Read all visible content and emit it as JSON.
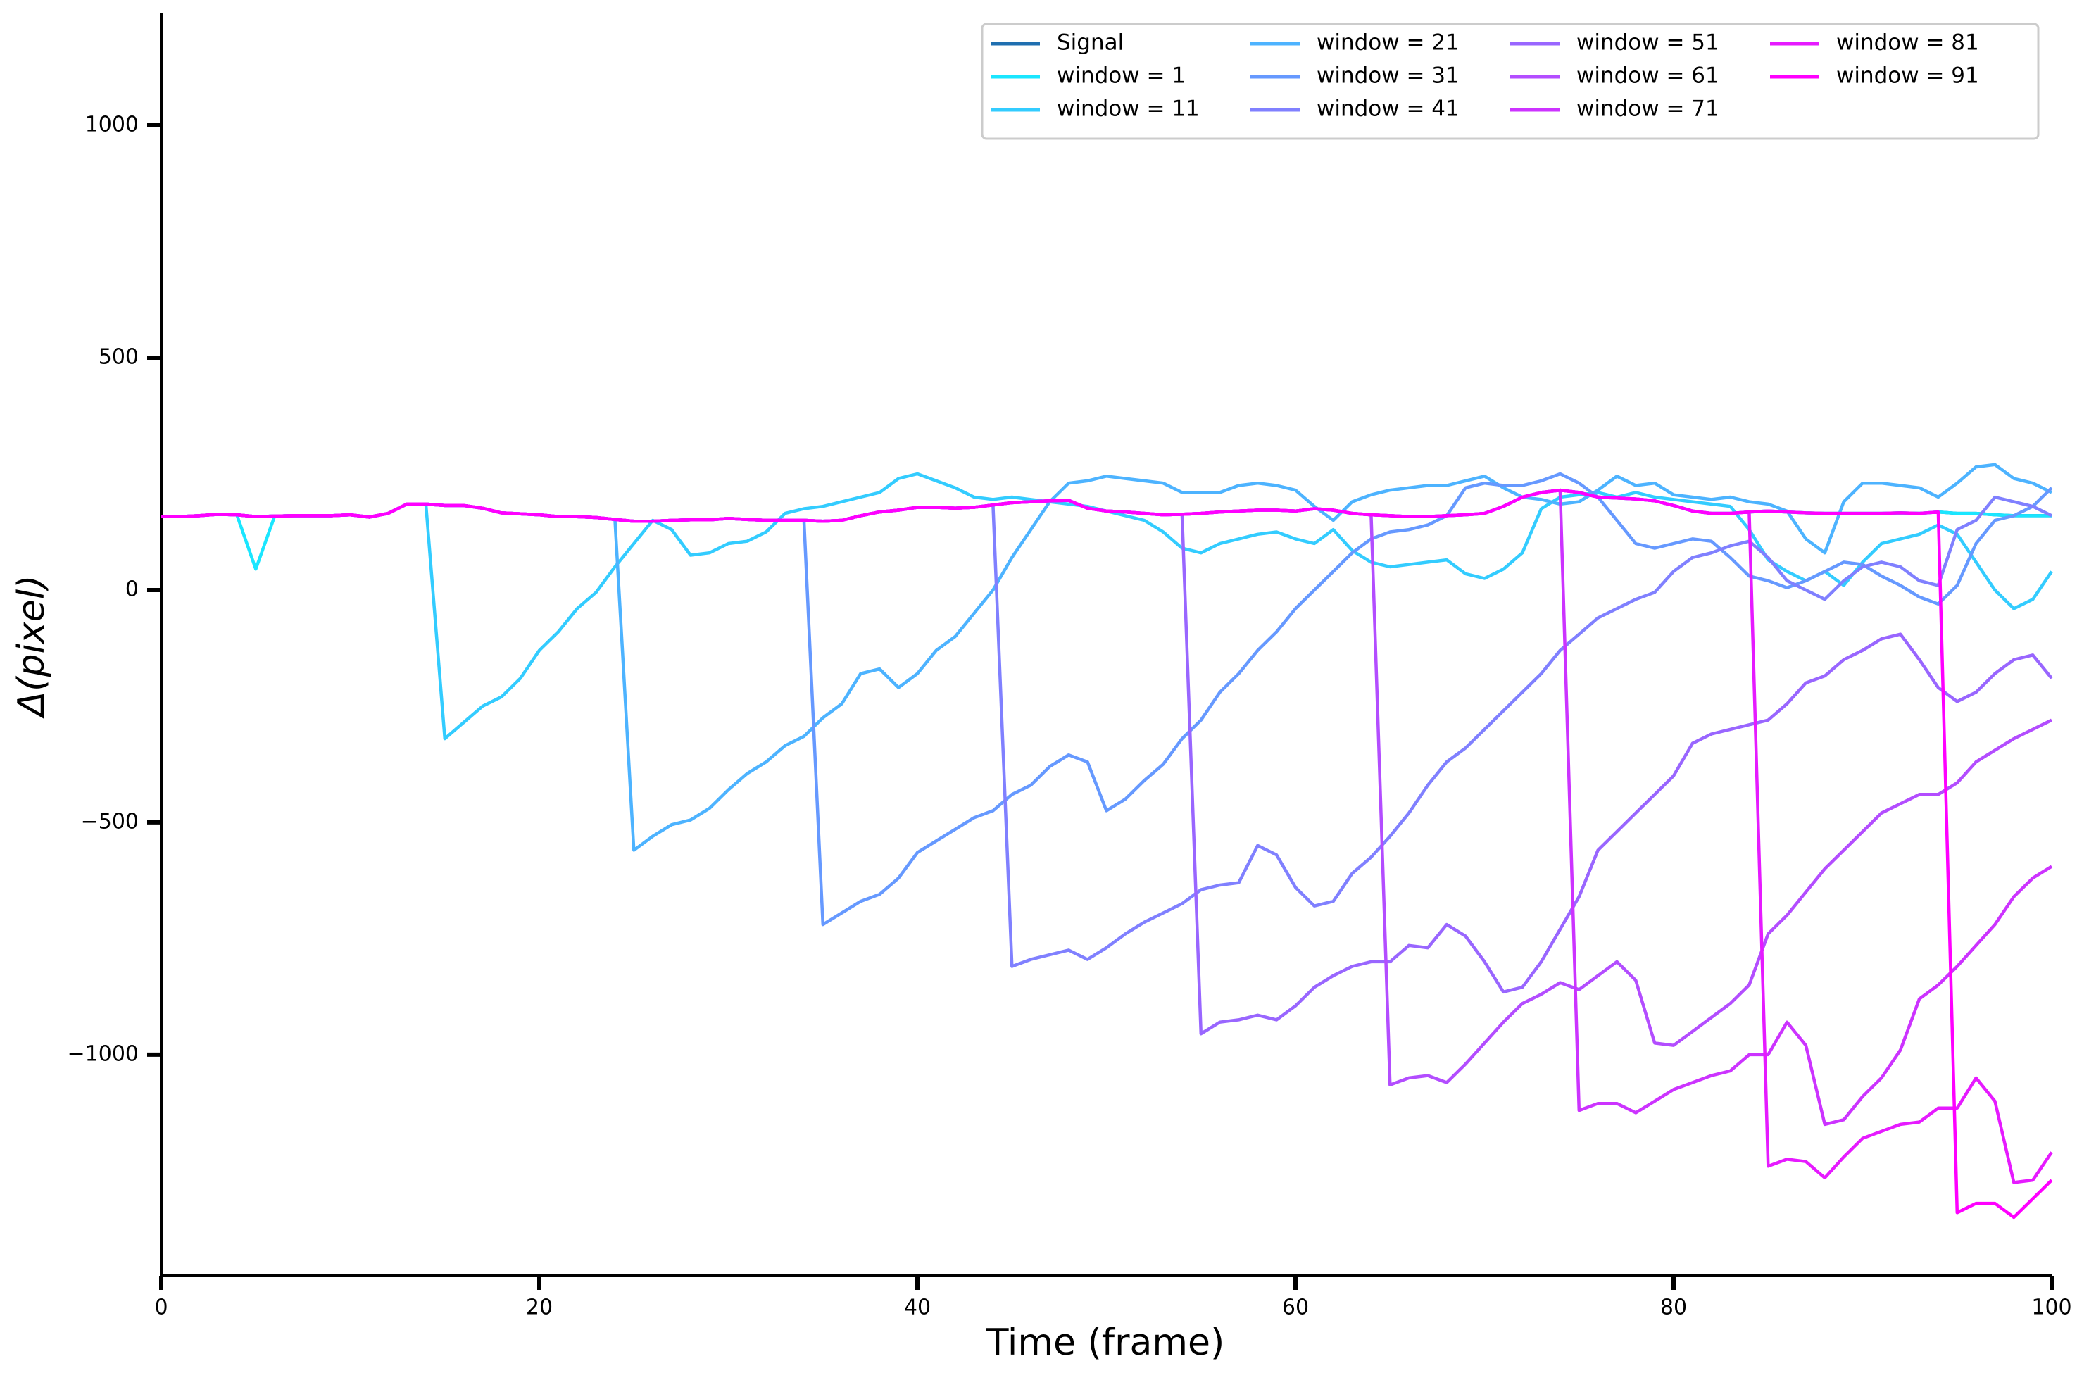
{
  "chart_data": {
    "type": "line",
    "xlabel": "Time (frame)",
    "ylabel": "Δ(pixel)",
    "xlim": [
      0,
      100
    ],
    "ylim": [
      -1476,
      1241
    ],
    "xticks": [
      0,
      20,
      40,
      60,
      80,
      100
    ],
    "yticks": [
      {
        "value": -1000,
        "label": "−1000"
      },
      {
        "value": -500,
        "label": "−500"
      },
      0,
      500,
      1000
    ],
    "legend": "upper right",
    "x": [
      0,
      1,
      2,
      3,
      4,
      5,
      6,
      7,
      8,
      9,
      10,
      11,
      12,
      13,
      14,
      15,
      16,
      17,
      18,
      19,
      20,
      21,
      22,
      23,
      24,
      25,
      26,
      27,
      28,
      29,
      30,
      31,
      32,
      33,
      34,
      35,
      36,
      37,
      38,
      39,
      40,
      41,
      42,
      43,
      44,
      45,
      46,
      47,
      48,
      49,
      50,
      51,
      52,
      53,
      54,
      55,
      56,
      57,
      58,
      59,
      60,
      61,
      62,
      63,
      64,
      65,
      66,
      67,
      68,
      69,
      70,
      71,
      72,
      73,
      74,
      75,
      76,
      77,
      78,
      79,
      80,
      81,
      82,
      83,
      84,
      85,
      86,
      87,
      88,
      89,
      90,
      91,
      92,
      93,
      94,
      95,
      96,
      97,
      98,
      99,
      100
    ],
    "series": [
      {
        "name": "Signal",
        "color": "#1f6fb0",
        "values": [
          158,
          158,
          160,
          163,
          162,
          158,
          159,
          160,
          160,
          160,
          162,
          157,
          165,
          185,
          185,
          182,
          182,
          176,
          166,
          164,
          162,
          158,
          158,
          156,
          152,
          148,
          148,
          150,
          151,
          151,
          154,
          152,
          150,
          150,
          150,
          148,
          150,
          160,
          168,
          172,
          178,
          178,
          176,
          178,
          183,
          188,
          190,
          192,
          193,
          176,
          170,
          168,
          165,
          162,
          163,
          165,
          168,
          170,
          172,
          172,
          170,
          175,
          172,
          165,
          162,
          160,
          158,
          158,
          160,
          162,
          165,
          180,
          200,
          210,
          215,
          210,
          200,
          198,
          196,
          192,
          182,
          170,
          165,
          165,
          168,
          170,
          168,
          166,
          165,
          165,
          165,
          165,
          166,
          165,
          168,
          165,
          165,
          162,
          160,
          160,
          160
        ]
      },
      {
        "name": "window = 1",
        "color": "#1ae6ff",
        "values": [
          158,
          158,
          160,
          163,
          162,
          45,
          159,
          160,
          160,
          160,
          162,
          157,
          165,
          185,
          185,
          182,
          182,
          176,
          166,
          164,
          162,
          158,
          158,
          156,
          152,
          148,
          148,
          150,
          151,
          151,
          154,
          152,
          150,
          150,
          150,
          148,
          150,
          160,
          168,
          172,
          178,
          178,
          176,
          178,
          183,
          188,
          190,
          192,
          193,
          176,
          170,
          168,
          165,
          162,
          163,
          165,
          168,
          170,
          172,
          172,
          170,
          175,
          172,
          165,
          162,
          160,
          158,
          158,
          160,
          162,
          165,
          180,
          200,
          210,
          215,
          210,
          200,
          198,
          196,
          192,
          182,
          170,
          165,
          165,
          168,
          170,
          168,
          166,
          165,
          165,
          165,
          165,
          166,
          165,
          168,
          165,
          165,
          162,
          160,
          160,
          160
        ]
      },
      {
        "name": "window = 11",
        "color": "#33ccff",
        "values": [
          158,
          158,
          160,
          163,
          162,
          158,
          159,
          160,
          160,
          160,
          162,
          157,
          165,
          185,
          185,
          -320,
          -285,
          -250,
          -230,
          -190,
          -130,
          -90,
          -40,
          -5,
          50,
          100,
          150,
          130,
          75,
          80,
          100,
          105,
          125,
          165,
          175,
          180,
          190,
          200,
          210,
          240,
          250,
          235,
          220,
          200,
          195,
          200,
          195,
          190,
          185,
          180,
          170,
          160,
          150,
          125,
          90,
          80,
          100,
          110,
          120,
          125,
          110,
          100,
          130,
          85,
          60,
          50,
          55,
          60,
          65,
          35,
          25,
          45,
          80,
          175,
          200,
          205,
          210,
          200,
          210,
          200,
          195,
          190,
          185,
          180,
          130,
          65,
          40,
          20,
          40,
          10,
          60,
          100,
          110,
          120,
          140,
          120,
          60,
          0,
          -40,
          -20,
          40
        ]
      },
      {
        "name": "window = 21",
        "color": "#4db3ff",
        "values": [
          158,
          158,
          160,
          163,
          162,
          158,
          159,
          160,
          160,
          160,
          162,
          157,
          165,
          185,
          185,
          182,
          182,
          176,
          166,
          164,
          162,
          158,
          158,
          156,
          152,
          -560,
          -530,
          -505,
          -495,
          -470,
          -430,
          -395,
          -370,
          -335,
          -315,
          -275,
          -245,
          -180,
          -170,
          -210,
          -180,
          -130,
          -100,
          -50,
          0,
          70,
          130,
          190,
          230,
          235,
          245,
          240,
          235,
          230,
          210,
          210,
          210,
          225,
          230,
          225,
          215,
          180,
          150,
          190,
          205,
          215,
          220,
          225,
          225,
          235,
          245,
          220,
          200,
          195,
          185,
          190,
          215,
          245,
          225,
          230,
          205,
          200,
          195,
          200,
          190,
          185,
          170,
          110,
          80,
          190,
          230,
          230,
          225,
          220,
          200,
          230,
          265,
          270,
          240,
          230,
          210
        ]
      },
      {
        "name": "window = 31",
        "color": "#6699ff",
        "values": [
          158,
          158,
          160,
          163,
          162,
          158,
          159,
          160,
          160,
          160,
          162,
          157,
          165,
          185,
          185,
          182,
          182,
          176,
          166,
          164,
          162,
          158,
          158,
          156,
          152,
          148,
          148,
          150,
          151,
          151,
          154,
          152,
          150,
          150,
          150,
          -720,
          -695,
          -670,
          -655,
          -620,
          -565,
          -540,
          -515,
          -490,
          -475,
          -440,
          -420,
          -380,
          -355,
          -370,
          -475,
          -450,
          -410,
          -375,
          -320,
          -280,
          -220,
          -180,
          -130,
          -90,
          -40,
          0,
          40,
          80,
          110,
          125,
          130,
          140,
          160,
          220,
          230,
          225,
          225,
          235,
          250,
          230,
          200,
          150,
          100,
          90,
          100,
          110,
          105,
          70,
          30,
          20,
          5,
          20,
          40,
          60,
          55,
          30,
          10,
          -15,
          -30,
          10,
          100,
          150,
          160,
          180,
          220
        ]
      },
      {
        "name": "window = 41",
        "color": "#8080ff",
        "values": [
          158,
          158,
          160,
          163,
          162,
          158,
          159,
          160,
          160,
          160,
          162,
          157,
          165,
          185,
          185,
          182,
          182,
          176,
          166,
          164,
          162,
          158,
          158,
          156,
          152,
          148,
          148,
          150,
          151,
          151,
          154,
          152,
          150,
          150,
          150,
          148,
          150,
          160,
          168,
          172,
          178,
          178,
          176,
          178,
          183,
          -810,
          -795,
          -785,
          -775,
          -795,
          -770,
          -740,
          -715,
          -695,
          -675,
          -645,
          -635,
          -630,
          -550,
          -570,
          -640,
          -680,
          -670,
          -610,
          -575,
          -530,
          -480,
          -420,
          -370,
          -340,
          -300,
          -260,
          -220,
          -180,
          -130,
          -95,
          -60,
          -40,
          -20,
          -5,
          40,
          70,
          80,
          95,
          105,
          70,
          20,
          0,
          -20,
          20,
          50,
          60,
          50,
          20,
          10,
          130,
          150,
          200,
          190,
          180,
          160
        ]
      },
      {
        "name": "window = 51",
        "color": "#9966ff",
        "values": [
          158,
          158,
          160,
          163,
          162,
          158,
          159,
          160,
          160,
          160,
          162,
          157,
          165,
          185,
          185,
          182,
          182,
          176,
          166,
          164,
          162,
          158,
          158,
          156,
          152,
          148,
          148,
          150,
          151,
          151,
          154,
          152,
          150,
          150,
          150,
          148,
          150,
          160,
          168,
          172,
          178,
          178,
          176,
          178,
          183,
          188,
          190,
          192,
          193,
          176,
          170,
          168,
          165,
          162,
          163,
          -955,
          -930,
          -925,
          -915,
          -925,
          -895,
          -855,
          -830,
          -810,
          -800,
          -800,
          -765,
          -770,
          -720,
          -745,
          -800,
          -865,
          -855,
          -800,
          -730,
          -660,
          -560,
          -520,
          -480,
          -440,
          -400,
          -330,
          -310,
          -300,
          -290,
          -280,
          -245,
          -200,
          -185,
          -150,
          -130,
          -105,
          -95,
          -150,
          -210,
          -240,
          -220,
          -180,
          -150,
          -140,
          -190
        ]
      },
      {
        "name": "window = 61",
        "color": "#b34dff",
        "values": [
          158,
          158,
          160,
          163,
          162,
          158,
          159,
          160,
          160,
          160,
          162,
          157,
          165,
          185,
          185,
          182,
          182,
          176,
          166,
          164,
          162,
          158,
          158,
          156,
          152,
          148,
          148,
          150,
          151,
          151,
          154,
          152,
          150,
          150,
          150,
          148,
          150,
          160,
          168,
          172,
          178,
          178,
          176,
          178,
          183,
          188,
          190,
          192,
          193,
          176,
          170,
          168,
          165,
          162,
          163,
          165,
          168,
          170,
          172,
          172,
          170,
          175,
          172,
          165,
          162,
          -1065,
          -1050,
          -1045,
          -1060,
          -1020,
          -975,
          -930,
          -890,
          -870,
          -845,
          -860,
          -830,
          -800,
          -840,
          -975,
          -980,
          -950,
          -920,
          -890,
          -850,
          -740,
          -700,
          -650,
          -600,
          -560,
          -520,
          -480,
          -460,
          -440,
          -440,
          -415,
          -370,
          -345,
          -320,
          -300,
          -280
        ]
      },
      {
        "name": "window = 71",
        "color": "#cc33ff",
        "values": [
          158,
          158,
          160,
          163,
          162,
          158,
          159,
          160,
          160,
          160,
          162,
          157,
          165,
          185,
          185,
          182,
          182,
          176,
          166,
          164,
          162,
          158,
          158,
          156,
          152,
          148,
          148,
          150,
          151,
          151,
          154,
          152,
          150,
          150,
          150,
          148,
          150,
          160,
          168,
          172,
          178,
          178,
          176,
          178,
          183,
          188,
          190,
          192,
          193,
          176,
          170,
          168,
          165,
          162,
          163,
          165,
          168,
          170,
          172,
          172,
          170,
          175,
          172,
          165,
          162,
          160,
          158,
          158,
          160,
          162,
          165,
          180,
          200,
          210,
          215,
          -1120,
          -1105,
          -1105,
          -1125,
          -1100,
          -1075,
          -1060,
          -1045,
          -1035,
          -1000,
          -1000,
          -930,
          -980,
          -1150,
          -1140,
          -1090,
          -1050,
          -990,
          -880,
          -850,
          -810,
          -765,
          -720,
          -660,
          -620,
          -595
        ]
      },
      {
        "name": "window = 81",
        "color": "#e61aff",
        "values": [
          158,
          158,
          160,
          163,
          162,
          158,
          159,
          160,
          160,
          160,
          162,
          157,
          165,
          185,
          185,
          182,
          182,
          176,
          166,
          164,
          162,
          158,
          158,
          156,
          152,
          148,
          148,
          150,
          151,
          151,
          154,
          152,
          150,
          150,
          150,
          148,
          150,
          160,
          168,
          172,
          178,
          178,
          176,
          178,
          183,
          188,
          190,
          192,
          193,
          176,
          170,
          168,
          165,
          162,
          163,
          165,
          168,
          170,
          172,
          172,
          170,
          175,
          172,
          165,
          162,
          160,
          158,
          158,
          160,
          162,
          165,
          180,
          200,
          210,
          215,
          210,
          200,
          198,
          196,
          192,
          182,
          170,
          165,
          165,
          168,
          -1240,
          -1225,
          -1230,
          -1265,
          -1220,
          -1180,
          -1165,
          -1150,
          -1145,
          -1115,
          -1115,
          -1050,
          -1100,
          -1275,
          -1270,
          -1210
        ]
      },
      {
        "name": "window = 91",
        "color": "#ff00ff",
        "values": [
          158,
          158,
          160,
          163,
          162,
          158,
          159,
          160,
          160,
          160,
          162,
          157,
          165,
          185,
          185,
          182,
          182,
          176,
          166,
          164,
          162,
          158,
          158,
          156,
          152,
          148,
          148,
          150,
          151,
          151,
          154,
          152,
          150,
          150,
          150,
          148,
          150,
          160,
          168,
          172,
          178,
          178,
          176,
          178,
          183,
          188,
          190,
          192,
          193,
          176,
          170,
          168,
          165,
          162,
          163,
          165,
          168,
          170,
          172,
          172,
          170,
          175,
          172,
          165,
          162,
          160,
          158,
          158,
          160,
          162,
          165,
          180,
          200,
          210,
          215,
          210,
          200,
          198,
          196,
          192,
          182,
          170,
          165,
          165,
          168,
          170,
          168,
          166,
          165,
          165,
          165,
          165,
          166,
          165,
          168,
          -1340,
          -1320,
          -1320,
          -1350,
          -1310,
          -1270
        ]
      }
    ]
  }
}
